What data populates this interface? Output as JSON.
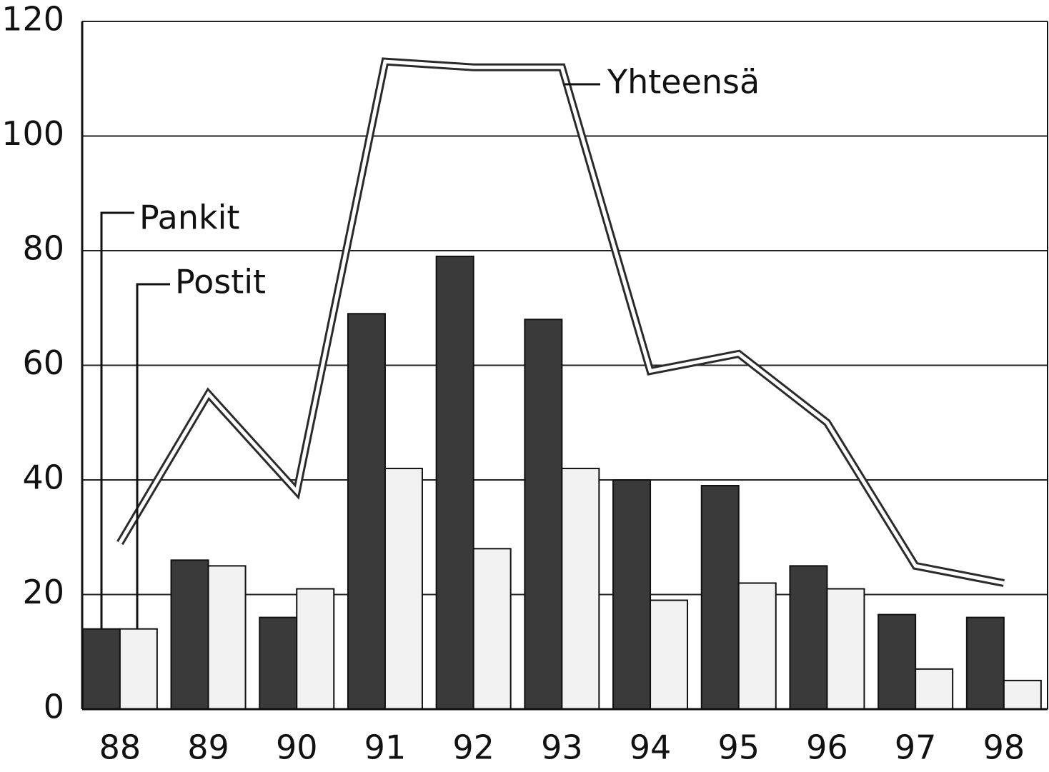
{
  "chart_data": {
    "type": "bar",
    "categories": [
      "88",
      "89",
      "90",
      "91",
      "92",
      "93",
      "94",
      "95",
      "96",
      "97",
      "98"
    ],
    "series": [
      {
        "name": "Pankit",
        "color": "#3a3a3a",
        "values": [
          14,
          26,
          16,
          69,
          79,
          68,
          40,
          39,
          25,
          16.5,
          16
        ]
      },
      {
        "name": "Postit",
        "color": "#f2f2f2",
        "values": [
          14,
          25,
          21,
          42,
          28,
          42,
          19,
          22,
          21,
          7,
          5
        ]
      },
      {
        "name": "Yhteensä",
        "type": "line",
        "color": "#2a2a2a",
        "values": [
          29,
          55,
          38,
          113,
          112,
          112,
          59,
          62,
          50,
          25,
          22
        ]
      }
    ],
    "ylim": [
      0,
      120
    ],
    "yticks": [
      0,
      20,
      40,
      60,
      80,
      100,
      120
    ],
    "grid": true
  }
}
